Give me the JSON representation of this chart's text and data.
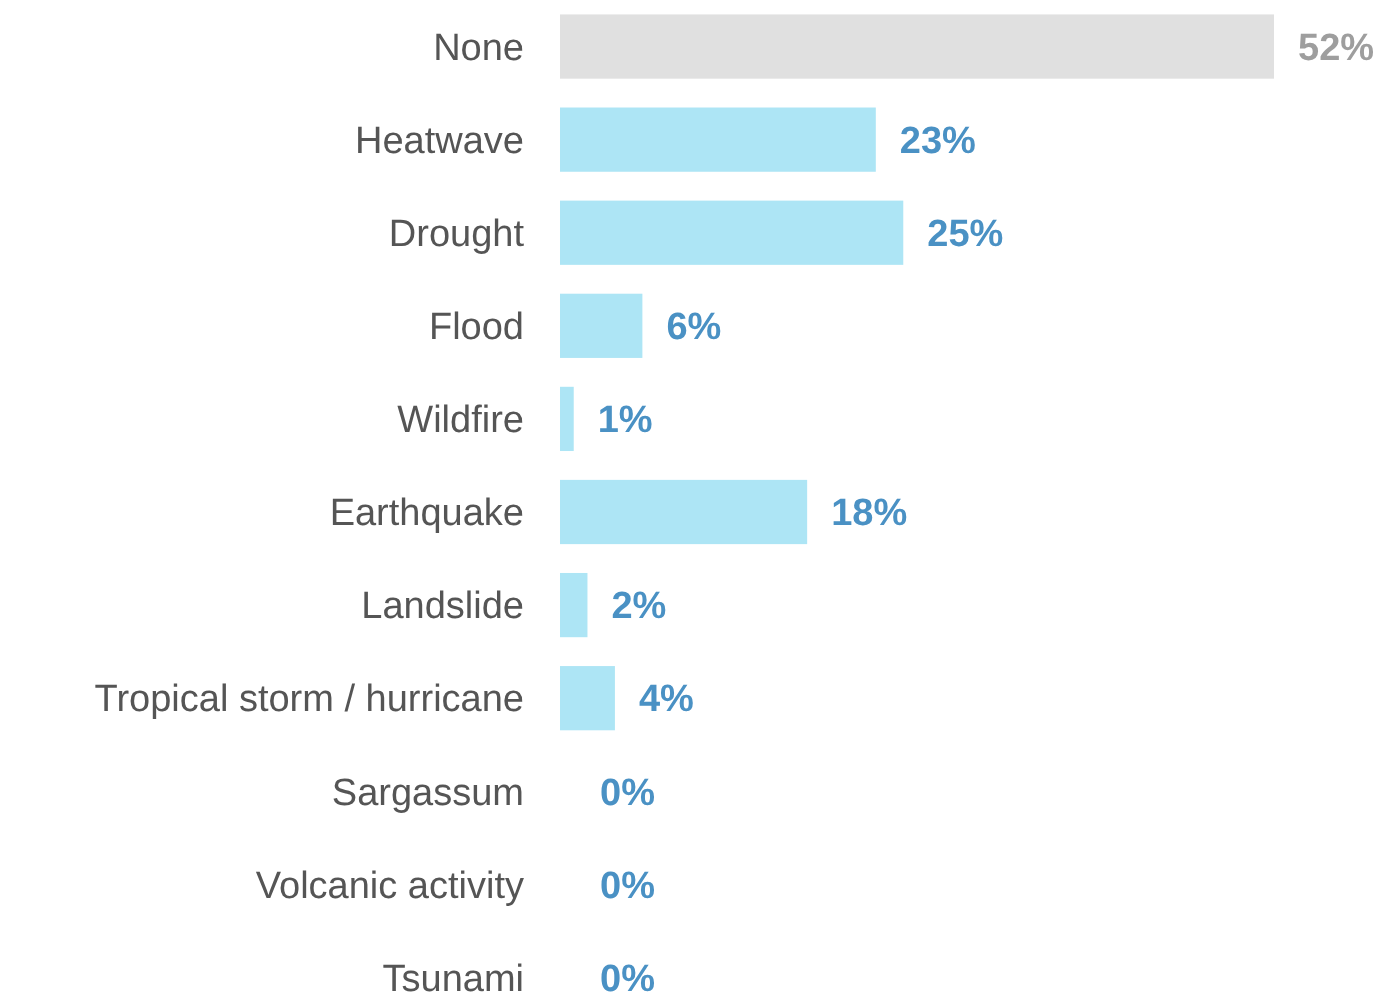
{
  "chart_data": {
    "type": "bar",
    "orientation": "horizontal",
    "categories": [
      "None",
      "Heatwave",
      "Drought",
      "Flood",
      "Wildfire",
      "Earthquake",
      "Landslide",
      "Tropical storm / hurricane",
      "Sargassum",
      "Volcanic activity",
      "Tsunami"
    ],
    "values": [
      52,
      23,
      25,
      6,
      1,
      18,
      2,
      4,
      0,
      0,
      0
    ],
    "value_labels": [
      "52%",
      "23%",
      "25%",
      "6%",
      "1%",
      "18%",
      "2%",
      "4%",
      "0%",
      "0%",
      "0%"
    ],
    "colors": [
      "#e0e0e0",
      "#ade5f5",
      "#ade5f5",
      "#ade5f5",
      "#ade5f5",
      "#ade5f5",
      "#ade5f5",
      "#ade5f5",
      "#ade5f5",
      "#ade5f5",
      "#ade5f5"
    ],
    "tick_labels": "y"
  }
}
